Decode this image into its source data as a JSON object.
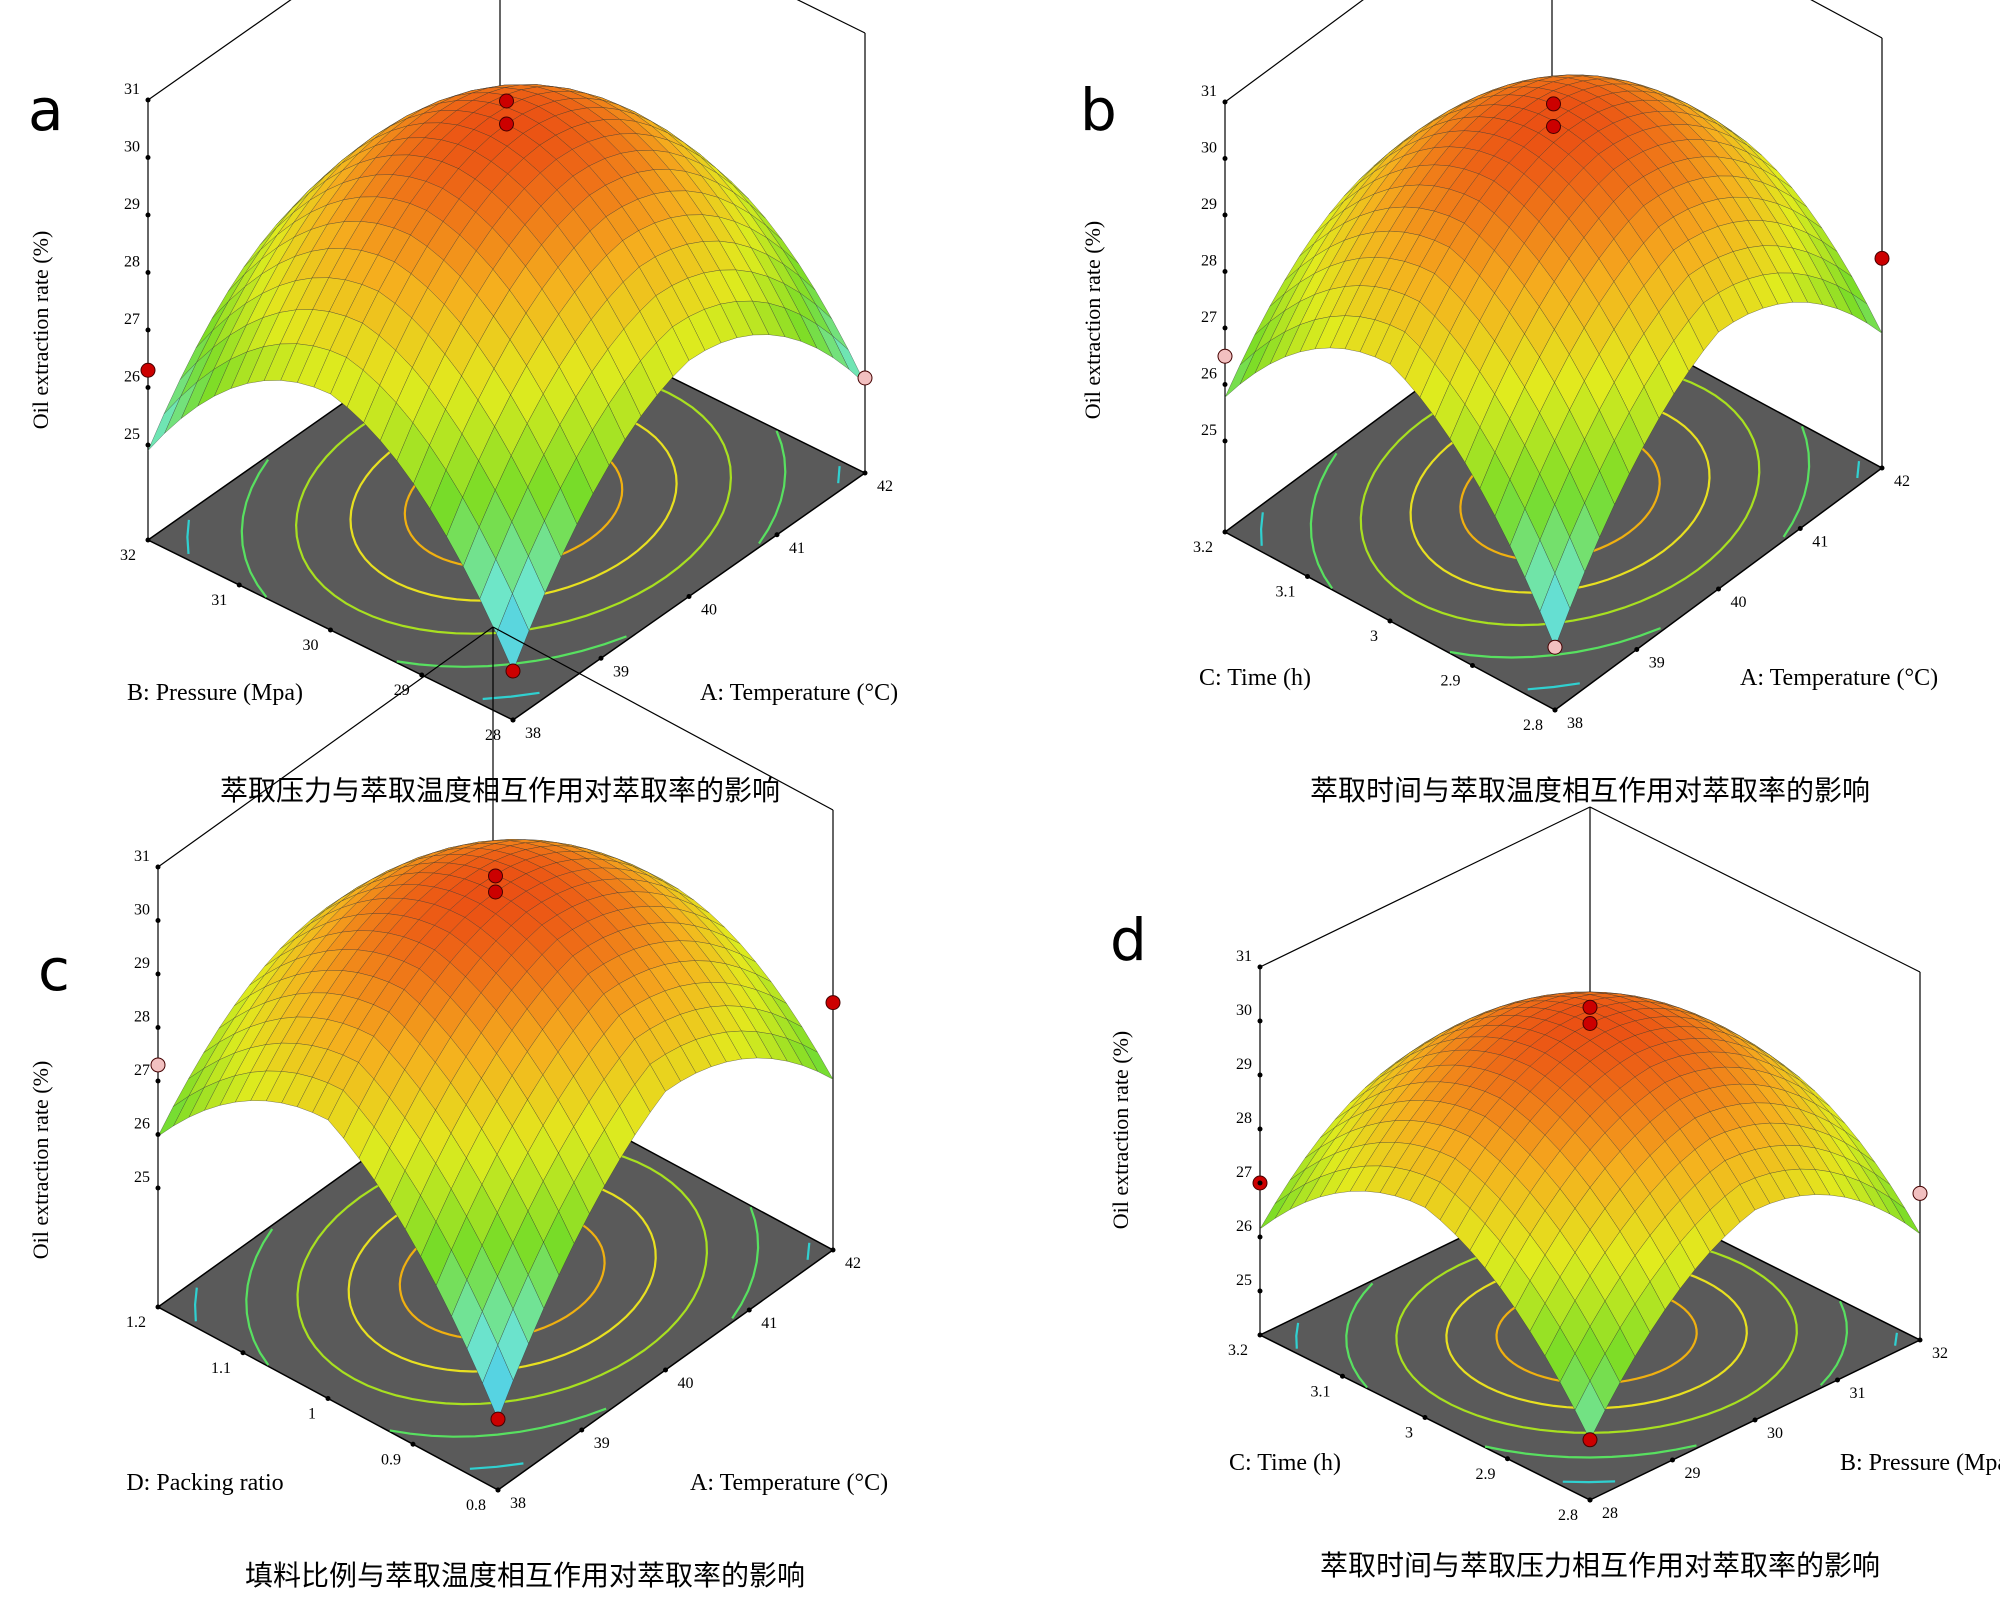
{
  "chart_data": [
    {
      "type": "surface3d",
      "panel_label": "a",
      "x_axis": {
        "label": "A: Temperature (°C)",
        "ticks": [
          38,
          39,
          40,
          41,
          42
        ],
        "range": [
          38,
          42
        ]
      },
      "y_axis": {
        "label": "B: Pressure (Mpa)",
        "ticks": [
          28,
          29,
          30,
          31,
          32
        ],
        "range": [
          28,
          32
        ]
      },
      "z_axis": {
        "label": "Oil extraction rate (%)",
        "ticks": [
          25,
          26,
          27,
          28,
          29,
          30,
          31
        ],
        "range": [
          24,
          31
        ]
      },
      "surface": {
        "peak_value": 30.0,
        "min_corner_value": 24.2,
        "left_corner_value": 25.8,
        "right_corner_value": 26.1
      },
      "design_points": [
        {
          "value": 30.4,
          "position": "center",
          "color": "#cc0000"
        },
        {
          "value": 30.0,
          "position": "center",
          "color": "#cc0000"
        },
        {
          "value": 24.2,
          "position": "front",
          "color": "#cc0000"
        },
        {
          "value": 26.3,
          "position": "left",
          "color": "#cc0000"
        },
        {
          "value": 25.0,
          "position": "right",
          "color": "#f2c0c0"
        }
      ],
      "caption": "萃取压力与萃取温度相互作用对萃取率的影响"
    },
    {
      "type": "surface3d",
      "panel_label": "b",
      "x_axis": {
        "label": "A: Temperature (°C)",
        "ticks": [
          38,
          39,
          40,
          41,
          42
        ],
        "range": [
          38,
          42
        ]
      },
      "y_axis": {
        "label": "C: Time (h)",
        "ticks": [
          2.8,
          2.9,
          3,
          3.1,
          3.2
        ],
        "range": [
          2.8,
          3.2
        ]
      },
      "z_axis": {
        "label": "Oil extraction rate (%)",
        "ticks": [
          25,
          26,
          27,
          28,
          29,
          30,
          31
        ],
        "range": [
          24,
          31
        ]
      },
      "surface": {
        "peak_value": 30.1,
        "min_corner_value": 24.5,
        "left_corner_value": 26.9,
        "right_corner_value": 27.1
      },
      "design_points": [
        {
          "value": 30.4,
          "position": "center",
          "color": "#cc0000"
        },
        {
          "value": 30.0,
          "position": "center",
          "color": "#cc0000"
        },
        {
          "value": 24.5,
          "position": "front",
          "color": "#f2c0c0"
        },
        {
          "value": 26.5,
          "position": "left",
          "color": "#f2c0c0"
        },
        {
          "value": 27.1,
          "position": "right",
          "color": "#cc0000"
        }
      ],
      "caption": "萃取时间与萃取温度相互作用对萃取率的影响"
    },
    {
      "type": "surface3d",
      "panel_label": "c",
      "x_axis": {
        "label": "A: Temperature (°C)",
        "ticks": [
          38,
          39,
          40,
          41,
          42
        ],
        "range": [
          38,
          42
        ]
      },
      "y_axis": {
        "label": "D: Packing ratio",
        "ticks": [
          0.8,
          0.9,
          1,
          1.1,
          1.2
        ],
        "range": [
          0.8,
          1.2
        ]
      },
      "z_axis": {
        "label": "Oil extraction rate (%)",
        "ticks": [
          25,
          26,
          27,
          28,
          29,
          30,
          31
        ],
        "range": [
          24,
          31
        ]
      },
      "surface": {
        "peak_value": 30.0,
        "min_corner_value": 24.1,
        "left_corner_value": 27.5,
        "right_corner_value": 27.4
      },
      "design_points": [
        {
          "value": 30.3,
          "position": "center",
          "color": "#cc0000"
        },
        {
          "value": 30.0,
          "position": "center",
          "color": "#cc0000"
        },
        {
          "value": 24.1,
          "position": "front",
          "color": "#cc0000"
        },
        {
          "value": 27.3,
          "position": "left",
          "color": "#f2c0c0"
        },
        {
          "value": 27.4,
          "position": "right",
          "color": "#cc0000"
        }
      ],
      "caption": "填料比例与萃取温度相互作用对萃取率的影响"
    },
    {
      "type": "surface3d",
      "panel_label": "d",
      "x_axis": {
        "label": "B: Pressure (Mpa)",
        "ticks": [
          28,
          29,
          30,
          31,
          32
        ],
        "range": [
          28,
          32
        ]
      },
      "y_axis": {
        "label": "C: Time (h)",
        "ticks": [
          2.8,
          2.9,
          3,
          3.1,
          3.2
        ],
        "range": [
          2.8,
          3.2
        ]
      },
      "z_axis": {
        "label": "Oil extraction rate (%)",
        "ticks": [
          25,
          26,
          27,
          28,
          29,
          30,
          31
        ],
        "range": [
          24,
          31
        ]
      },
      "surface": {
        "peak_value": 30.0,
        "min_corner_value": 25.3,
        "left_corner_value": 27.0,
        "right_corner_value": 27.2
      },
      "design_points": [
        {
          "value": 30.3,
          "position": "center",
          "color": "#cc0000"
        },
        {
          "value": 30.0,
          "position": "center",
          "color": "#cc0000"
        },
        {
          "value": 25.3,
          "position": "front",
          "color": "#cc0000"
        },
        {
          "value": 27.0,
          "position": "left",
          "color": "#cc0000"
        },
        {
          "value": 26.9,
          "position": "right",
          "color": "#f2c0c0"
        }
      ],
      "caption": "萃取时间与萃取压力相互作用对萃取率的影响"
    }
  ],
  "colors": {
    "floor": "#5a5a5a",
    "outline": "#000000",
    "design_point_dark": "#cc0000",
    "design_point_light": "#f2c0c0"
  }
}
